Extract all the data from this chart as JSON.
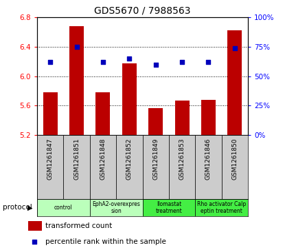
{
  "title": "GDS5670 / 7988563",
  "samples": [
    "GSM1261847",
    "GSM1261851",
    "GSM1261848",
    "GSM1261852",
    "GSM1261849",
    "GSM1261853",
    "GSM1261846",
    "GSM1261850"
  ],
  "transformed_counts": [
    5.78,
    6.68,
    5.78,
    6.18,
    5.57,
    5.67,
    5.68,
    6.63
  ],
  "percentile_ranks": [
    62,
    75,
    62,
    65,
    60,
    62,
    62,
    74
  ],
  "ylim_left": [
    5.2,
    6.8
  ],
  "ylim_right": [
    0,
    100
  ],
  "yticks_left": [
    5.2,
    5.6,
    6.0,
    6.4,
    6.8
  ],
  "yticks_right": [
    0,
    25,
    50,
    75,
    100
  ],
  "protocols": [
    {
      "label": "control",
      "indices": [
        0,
        1
      ],
      "color": "#bbffbb"
    },
    {
      "label": "EphA2-overexpres\nsion",
      "indices": [
        2,
        3
      ],
      "color": "#bbffbb"
    },
    {
      "label": "Ilomastat\ntreatment",
      "indices": [
        4,
        5
      ],
      "color": "#44ee44"
    },
    {
      "label": "Rho activator Calp\neptin treatment",
      "indices": [
        6,
        7
      ],
      "color": "#44ee44"
    }
  ],
  "bar_color": "#bb0000",
  "dot_color": "#0000bb",
  "bar_width": 0.55,
  "bg_color": "#cccccc",
  "legend_bar_label": "transformed count",
  "legend_dot_label": "percentile rank within the sample"
}
